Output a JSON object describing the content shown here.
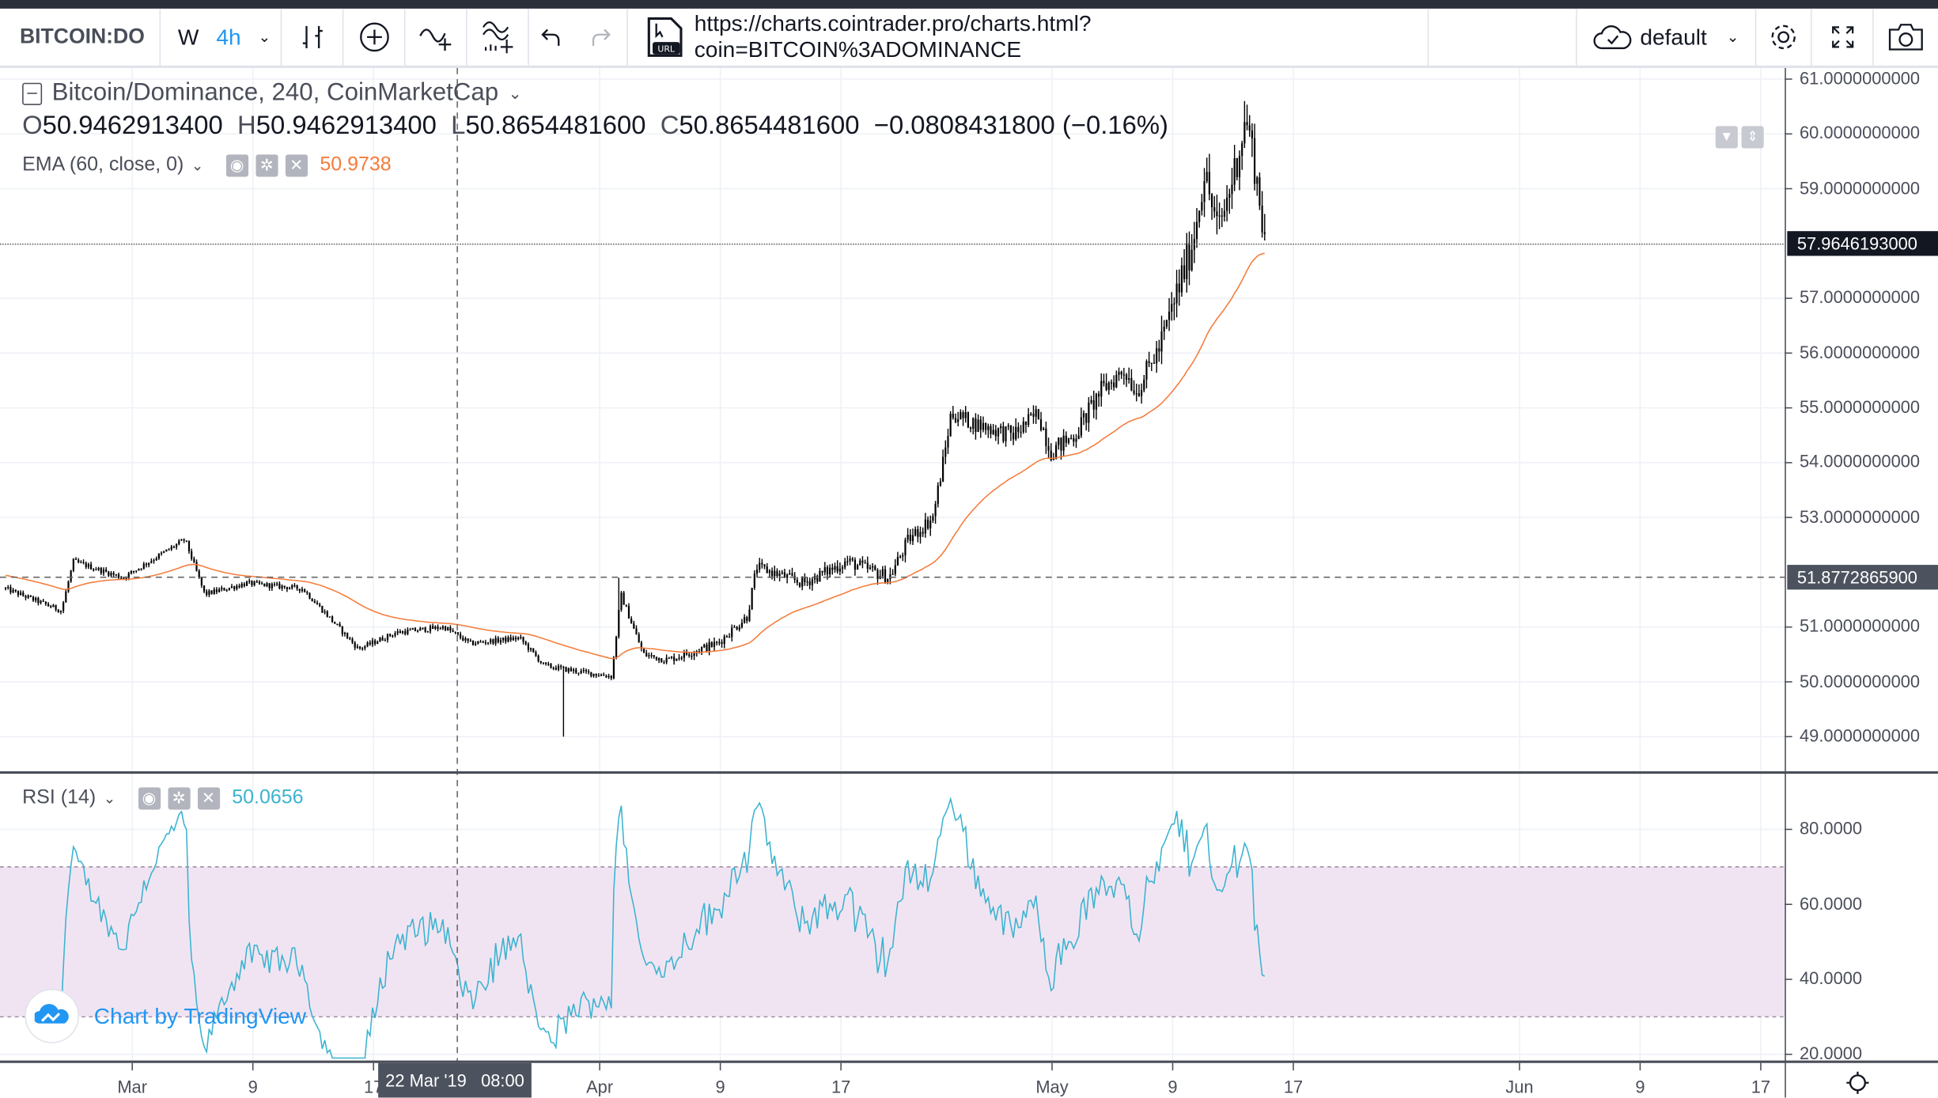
{
  "toolbar": {
    "symbol": "BITCOIN:DO",
    "res_w": "W",
    "res_h": "4h",
    "url": "https://charts.cointrader.pro/charts.html?coin=BITCOIN%3ADOMINANCE",
    "layout": "default"
  },
  "legend": {
    "title": "Bitcoin/Dominance, 240, CoinMarketCap",
    "o_key": "O",
    "o": "50.9462913400",
    "h_key": "H",
    "h": "50.9462913400",
    "l_key": "L",
    "l": "50.8654481600",
    "c_key": "C",
    "c": "50.8654481600",
    "change": "−0.0808431800 (−0.16%)",
    "ema_label": "EMA (60, close, 0)",
    "ema_value": "50.9738",
    "rsi_label": "RSI (14)",
    "rsi_value": "50.0656"
  },
  "watermark": "Chart by TradingView",
  "crosshair": {
    "time_date": "22 Mar '19",
    "time_clock": "08:00",
    "price": "51.8772865900"
  },
  "last_price": "57.9646193000",
  "colors": {
    "ema": "#f57c3b",
    "rsi": "#3bb3d0",
    "rsi_band": "#f1e4f2",
    "accent": "#2196f3"
  },
  "chart_data": [
    {
      "type": "candlestick",
      "title": "Bitcoin/Dominance, 240, CoinMarketCap",
      "x_unit": "days since Mar 1 2019",
      "ylim": [
        48.8,
        61.2
      ],
      "y_ticks": [
        "61.0000000000",
        "60.0000000000",
        "59.0000000000",
        "57.0000000000",
        "56.0000000000",
        "55.0000000000",
        "54.0000000000",
        "53.0000000000",
        "51.0000000000",
        "50.0000000000",
        "49.0000000000"
      ],
      "y_tick_values": [
        61,
        60,
        59,
        57,
        56,
        55,
        54,
        53,
        51,
        50,
        49
      ],
      "x_ticks": [
        {
          "label": "Mar",
          "day": 0
        },
        {
          "label": "9",
          "day": 8
        },
        {
          "label": "17",
          "day": 16
        },
        {
          "label": "Apr",
          "day": 31
        },
        {
          "label": "9",
          "day": 39
        },
        {
          "label": "17",
          "day": 47
        },
        {
          "label": "May",
          "day": 61
        },
        {
          "label": "9",
          "day": 69
        },
        {
          "label": "17",
          "day": 77
        },
        {
          "label": "Jun",
          "day": 92
        },
        {
          "label": "9",
          "day": 100
        },
        {
          "label": "17",
          "day": 108
        }
      ],
      "close_anchors": [
        [
          -8.4,
          51.7
        ],
        [
          -4.7,
          51.3
        ],
        [
          -3.9,
          52.2
        ],
        [
          -0.6,
          51.9
        ],
        [
          3.5,
          52.6
        ],
        [
          4.8,
          51.6
        ],
        [
          7.6,
          51.8
        ],
        [
          11.3,
          51.7
        ],
        [
          15.0,
          50.6
        ],
        [
          17.5,
          50.9
        ],
        [
          20.7,
          51.0
        ],
        [
          22.4,
          50.7
        ],
        [
          25.7,
          50.8
        ],
        [
          27.3,
          50.3
        ],
        [
          29.3,
          50.2
        ],
        [
          31.8,
          50.1
        ],
        [
          32.4,
          51.6
        ],
        [
          33.9,
          50.5
        ],
        [
          35.5,
          50.4
        ],
        [
          38.8,
          50.7
        ],
        [
          40.8,
          51.2
        ],
        [
          41.4,
          52.1
        ],
        [
          44.5,
          51.8
        ],
        [
          47.4,
          52.2
        ],
        [
          50.2,
          51.9
        ],
        [
          51.5,
          52.6
        ],
        [
          53.1,
          53.0
        ],
        [
          53.9,
          54.2
        ],
        [
          54.3,
          54.9
        ],
        [
          56.0,
          54.7
        ],
        [
          58.4,
          54.5
        ],
        [
          60.1,
          54.9
        ],
        [
          60.9,
          54.2
        ],
        [
          62.5,
          54.5
        ],
        [
          64.2,
          55.3
        ],
        [
          65.8,
          55.7
        ],
        [
          66.6,
          55.3
        ],
        [
          68.3,
          56.2
        ],
        [
          69.5,
          57.3
        ],
        [
          70.3,
          58.0
        ],
        [
          71.1,
          59.3
        ],
        [
          72.0,
          58.2
        ],
        [
          72.8,
          59.0
        ],
        [
          73.9,
          60.3
        ],
        [
          74.4,
          59.5
        ],
        [
          75.0,
          58.3
        ],
        [
          75.2,
          57.96
        ]
      ],
      "spikes": [
        {
          "day": 28.6,
          "low": 49.0
        },
        {
          "day": 73.8,
          "high": 60.6
        },
        {
          "day": 32.3,
          "high": 51.9
        }
      ],
      "series": [
        {
          "name": "EMA (60, close, 0)",
          "color": "#f57c3b"
        }
      ]
    },
    {
      "type": "line",
      "title": "RSI (14)",
      "ylim": [
        19,
        93
      ],
      "y_ticks": [
        "80.0000",
        "60.0000",
        "40.0000",
        "20.0000"
      ],
      "y_tick_values": [
        80,
        60,
        40,
        20
      ],
      "band": [
        30,
        70
      ]
    }
  ]
}
